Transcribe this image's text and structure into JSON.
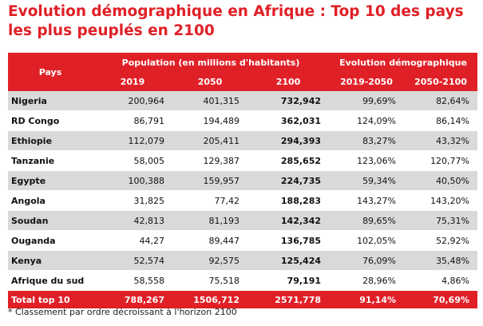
{
  "title": "Evolution démographique en Afrique : Top 10 des pays les plus peuplés en 2100",
  "headers": {
    "pays": "Pays",
    "population_group": "Population (en millions d'habitants)",
    "evolution_group": "Evolution démographique",
    "y2019": "2019",
    "y2050": "2050",
    "y2100": "2100",
    "e2019_2050": "2019-2050",
    "e2050_2100": "2050-2100"
  },
  "rows": [
    {
      "pays": "Nigeria",
      "p2019": "200,964",
      "p2050": "401,315",
      "p2100": "732,942",
      "e1": "99,69%",
      "e2": "82,64%"
    },
    {
      "pays": "RD Congo",
      "p2019": "86,791",
      "p2050": "194,489",
      "p2100": "362,031",
      "e1": "124,09%",
      "e2": "86,14%"
    },
    {
      "pays": "Ethiopie",
      "p2019": "112,079",
      "p2050": "205,411",
      "p2100": "294,393",
      "e1": "83,27%",
      "e2": "43,32%"
    },
    {
      "pays": "Tanzanie",
      "p2019": "58,005",
      "p2050": "129,387",
      "p2100": "285,652",
      "e1": "123,06%",
      "e2": "120,77%"
    },
    {
      "pays": "Egypte",
      "p2019": "100,388",
      "p2050": "159,957",
      "p2100": "224,735",
      "e1": "59,34%",
      "e2": "40,50%"
    },
    {
      "pays": "Angola",
      "p2019": "31,825",
      "p2050": "77,42",
      "p2100": "188,283",
      "e1": "143,27%",
      "e2": "143,20%"
    },
    {
      "pays": "Soudan",
      "p2019": "42,813",
      "p2050": "81,193",
      "p2100": "142,342",
      "e1": "89,65%",
      "e2": "75,31%"
    },
    {
      "pays": "Ouganda",
      "p2019": "44,27",
      "p2050": "89,447",
      "p2100": "136,785",
      "e1": "102,05%",
      "e2": "52,92%"
    },
    {
      "pays": "Kenya",
      "p2019": "52,574",
      "p2050": "92,575",
      "p2100": "125,424",
      "e1": "76,09%",
      "e2": "35,48%"
    },
    {
      "pays": "Afrique du sud",
      "p2019": "58,558",
      "p2050": "75,518",
      "p2100": "79,191",
      "e1": "28,96%",
      "e2": "4,86%"
    }
  ],
  "total": {
    "pays": "Total top 10",
    "p2019": "788,267",
    "p2050": "1506,712",
    "p2100": "2571,778",
    "e1": "91,14%",
    "e2": "70,69%"
  },
  "note": "* Classement par ordre décroissant à l'horizon 2100"
}
